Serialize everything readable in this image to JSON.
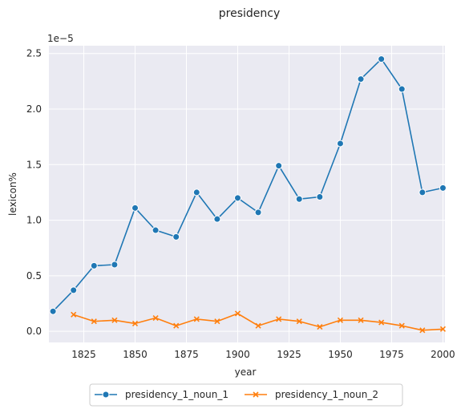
{
  "chart_data": {
    "type": "line",
    "title": "presidency",
    "xlabel": "year",
    "ylabel": "lexicon%",
    "y_offset_label": "1e−5",
    "xlim": [
      1808,
      2001
    ],
    "ylim": [
      -0.1,
      2.57
    ],
    "x_ticks": [
      1825,
      1850,
      1875,
      1900,
      1925,
      1950,
      1975,
      2000
    ],
    "y_ticks": [
      0.0,
      0.5,
      1.0,
      1.5,
      2.0,
      2.5
    ],
    "y_tick_labels": [
      "0.0",
      "0.5",
      "1.0",
      "1.5",
      "2.0",
      "2.5"
    ],
    "grid": true,
    "legend_position": "bottom-center",
    "series": [
      {
        "name": "presidency_1_noun_1",
        "color": "#1f77b4",
        "marker": "circle",
        "x": [
          1810,
          1820,
          1830,
          1840,
          1850,
          1860,
          1870,
          1880,
          1890,
          1900,
          1910,
          1920,
          1930,
          1940,
          1950,
          1960,
          1970,
          1980,
          1990,
          2000
        ],
        "y": [
          0.18,
          0.37,
          0.59,
          0.6,
          1.11,
          0.91,
          0.85,
          1.25,
          1.01,
          1.2,
          1.07,
          1.49,
          1.19,
          1.21,
          1.69,
          2.27,
          2.45,
          2.18,
          1.25,
          1.29
        ]
      },
      {
        "name": "presidency_1_noun_2",
        "color": "#ff7f0e",
        "marker": "x",
        "x": [
          1820,
          1830,
          1840,
          1850,
          1860,
          1870,
          1880,
          1890,
          1900,
          1910,
          1920,
          1930,
          1940,
          1950,
          1960,
          1970,
          1980,
          1990,
          2000
        ],
        "y": [
          0.15,
          0.09,
          0.1,
          0.07,
          0.12,
          0.05,
          0.11,
          0.09,
          0.16,
          0.05,
          0.11,
          0.09,
          0.04,
          0.1,
          0.1,
          0.08,
          0.05,
          0.01,
          0.02
        ]
      }
    ]
  }
}
